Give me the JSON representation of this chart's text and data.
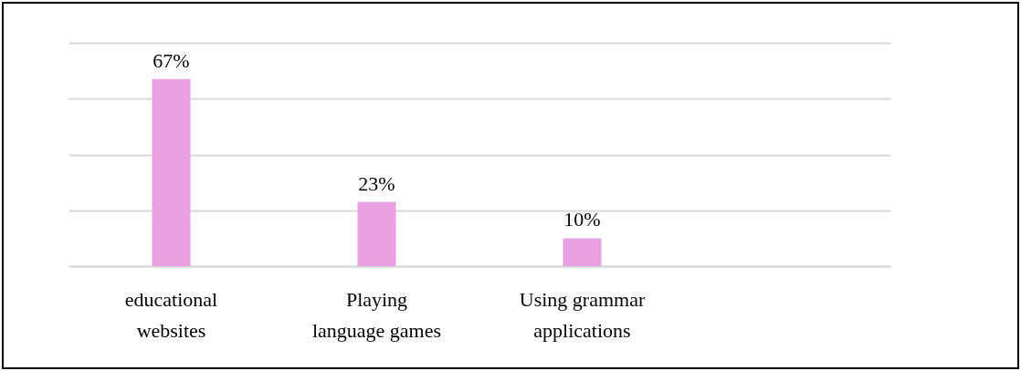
{
  "chart_data": {
    "type": "bar",
    "categories": [
      "educational websites",
      "Playing language games",
      "Using grammar applications",
      null
    ],
    "values": [
      67,
      23,
      10,
      null
    ],
    "value_labels": [
      "67%",
      "23%",
      "10%",
      null
    ],
    "color": "#e9a0e0",
    "ylim": [
      0,
      80
    ],
    "yticks": [
      {
        "value": 0,
        "label": null
      },
      {
        "value": 20,
        "label": null
      },
      {
        "value": 40,
        "label": null
      },
      {
        "value": 60,
        "label": null
      },
      {
        "value": 80,
        "label": null
      }
    ],
    "grid": "y",
    "tick_labels": "x"
  }
}
